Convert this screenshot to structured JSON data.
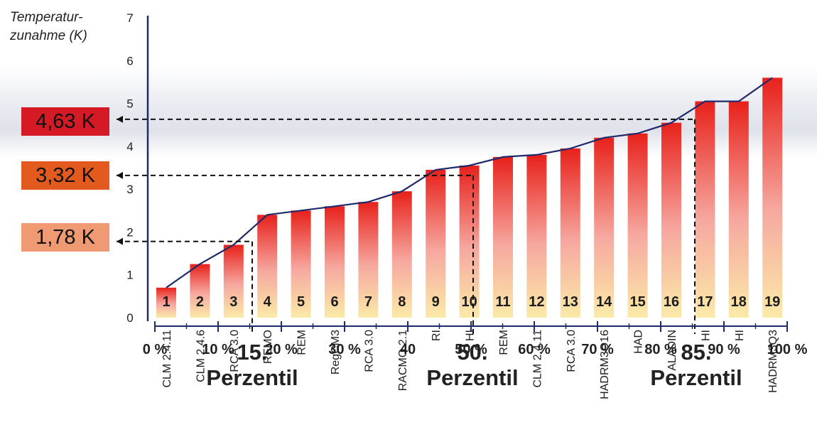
{
  "chart_data": {
    "type": "bar",
    "ylabel_line1": "Temperatur-",
    "ylabel_line2": "zunahme (K)",
    "ylim": [
      0,
      7
    ],
    "yticks": [
      0,
      1,
      2,
      3,
      4,
      5,
      6,
      7
    ],
    "categories": [
      "1",
      "2",
      "3",
      "4",
      "5",
      "6",
      "7",
      "8",
      "9",
      "10",
      "11",
      "12",
      "13",
      "14",
      "15",
      "16",
      "17",
      "18",
      "19"
    ],
    "values": [
      0.7,
      1.25,
      1.7,
      2.4,
      2.5,
      2.6,
      2.7,
      2.95,
      3.45,
      3.55,
      3.75,
      3.8,
      3.95,
      4.2,
      4.3,
      4.55,
      5.05,
      5.05,
      5.6
    ],
    "model_labels": [
      "CLM 2.4.11",
      "CLM 2.4.6",
      "RCA 3.0",
      "REMO",
      "REM",
      "RegCM3",
      "RCA 3.0",
      "RACMO 2.1",
      "RI",
      "HI",
      "REM",
      "CLM 2.4.11",
      "RCA 3.0",
      "HADRM3Q16",
      "HAD",
      "ALADIN",
      "HI",
      "HI",
      "HADRM3Q3"
    ],
    "x_percent_ticks": [
      "0 %",
      "10 %",
      "20 %",
      "30 %",
      "40",
      "50 %",
      "60 %",
      "70 %",
      "80 %",
      "90 %",
      "100 %"
    ],
    "percentiles": [
      {
        "number": "15.",
        "label": "Perzentil",
        "value": 1.78,
        "display": "1,78 K",
        "color": "#f09a74"
      },
      {
        "number": "50.",
        "label": "Perzentil",
        "value": 3.32,
        "display": "3,32 K",
        "color": "#e35a1f"
      },
      {
        "number": "85.",
        "label": "Perzentil",
        "value": 4.63,
        "display": "4,63 K",
        "color": "#d61a25"
      }
    ],
    "bar_gradient": {
      "top": "#e8211b",
      "middle": "#f6a8a0",
      "bottom": "#fbeaa8"
    },
    "grid": false
  }
}
